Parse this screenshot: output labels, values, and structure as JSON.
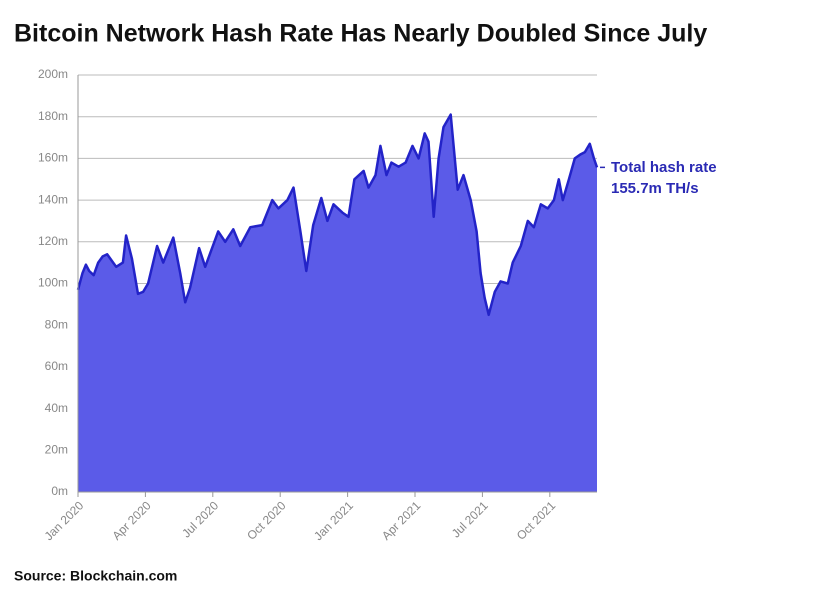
{
  "chart_data": {
    "type": "area",
    "title": "Bitcoin Network Hash Rate Has Nearly Doubled Since July",
    "source": "Source: Blockchain.com",
    "annotation": {
      "label": "Total hash rate",
      "value_label": "155.7m TH/s"
    },
    "color": "#5b5be8",
    "line_color": "#2323c8",
    "annotation_color": "#2a2ab4",
    "grid": true,
    "x": [
      0,
      0.2,
      0.35,
      0.5,
      0.7,
      0.9,
      1.1,
      1.3,
      1.5,
      1.7,
      2.0,
      2.14,
      2.4,
      2.67,
      2.9,
      3.12,
      3.52,
      3.79,
      4.24,
      4.55,
      4.77,
      4.99,
      5.39,
      5.66,
      6.24,
      6.55,
      6.91,
      7.22,
      7.67,
      8.2,
      8.65,
      8.92,
      9.32,
      9.59,
      9.9,
      10.16,
      10.47,
      10.83,
      11.1,
      11.37,
      11.77,
      12.04,
      12.3,
      12.71,
      12.93,
      13.24,
      13.46,
      13.73,
      13.95,
      14.27,
      14.58,
      14.89,
      15.16,
      15.43,
      15.6,
      15.83,
      16.05,
      16.27,
      16.59,
      16.9,
      17.16,
      17.48,
      17.74,
      17.92,
      18.1,
      18.28,
      18.55,
      18.81,
      19.13,
      19.35,
      19.71,
      20.02,
      20.29,
      20.6,
      20.91,
      21.18,
      21.4,
      21.58,
      21.85,
      22.11,
      22.38,
      22.56,
      22.78,
      22.96,
      23.1
    ],
    "values": [
      97,
      105,
      109,
      106,
      104,
      110,
      113,
      114,
      111,
      108,
      110,
      123,
      112,
      95,
      96,
      100,
      118,
      110,
      122,
      105,
      91,
      98,
      117,
      108,
      125,
      120,
      126,
      118,
      127,
      128,
      140,
      136,
      140,
      146,
      125,
      106,
      128,
      141,
      130,
      138,
      134,
      132,
      150,
      154,
      146,
      152,
      166,
      152,
      158,
      156,
      158,
      166,
      160,
      172,
      168,
      132,
      160,
      175,
      181,
      145,
      152,
      140,
      125,
      105,
      93,
      85,
      96,
      101,
      100,
      110,
      118,
      130,
      127,
      138,
      136,
      140,
      150,
      140,
      150,
      160,
      162,
      163,
      167,
      160,
      155.7
    ],
    "xlim": [
      0,
      23.1
    ],
    "xticks": [
      {
        "value": 0,
        "label": "Jan 2020"
      },
      {
        "value": 3,
        "label": "Apr 2020"
      },
      {
        "value": 6,
        "label": "Jul 2020"
      },
      {
        "value": 9,
        "label": "Oct 2020"
      },
      {
        "value": 12,
        "label": "Jan 2021"
      },
      {
        "value": 15,
        "label": "Apr 2021"
      },
      {
        "value": 18,
        "label": "Jul 2021"
      },
      {
        "value": 21,
        "label": "Oct 2021"
      }
    ],
    "ylim": [
      0,
      200
    ],
    "yticks": [
      {
        "value": 0,
        "label": "0m"
      },
      {
        "value": 20,
        "label": "20m"
      },
      {
        "value": 40,
        "label": "40m"
      },
      {
        "value": 60,
        "label": "60m"
      },
      {
        "value": 80,
        "label": "80m"
      },
      {
        "value": 100,
        "label": "100m"
      },
      {
        "value": 120,
        "label": "120m"
      },
      {
        "value": 140,
        "label": "140m"
      },
      {
        "value": 160,
        "label": "160m"
      },
      {
        "value": 180,
        "label": "180m"
      },
      {
        "value": 200,
        "label": "200m"
      }
    ]
  }
}
